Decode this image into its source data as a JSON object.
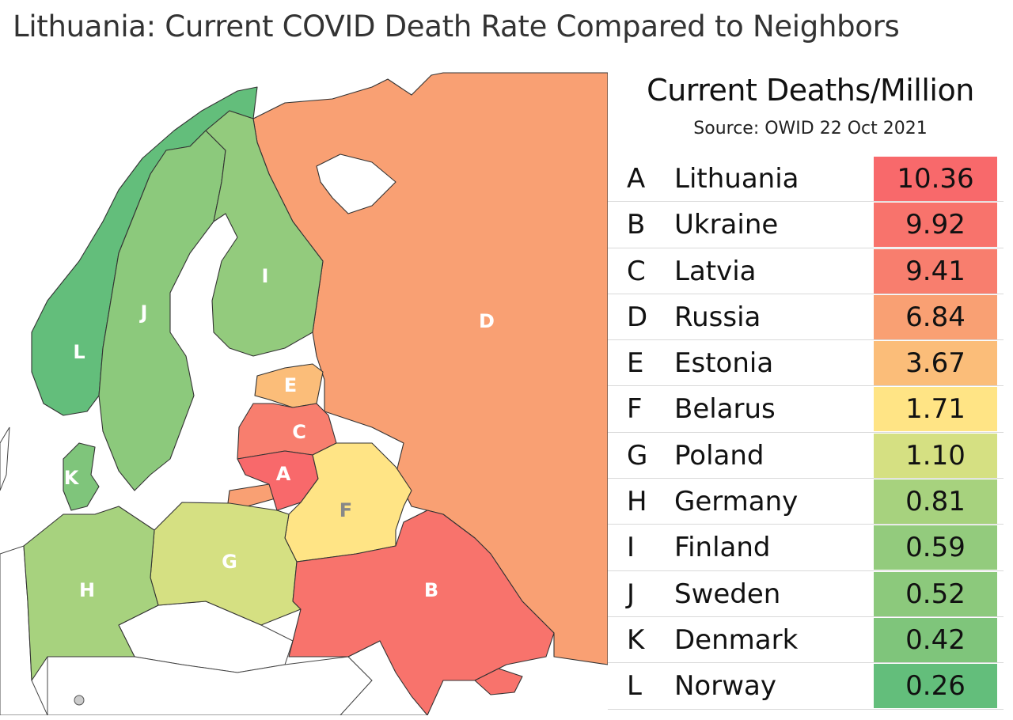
{
  "title": "Lithuania: Current COVID Death Rate Compared to Neighbors",
  "panel": {
    "heading": "Current Deaths/Million",
    "source": "Source: OWID 22 Oct 2021"
  },
  "countries": [
    {
      "letter": "A",
      "name": "Lithuania",
      "value": "10.36",
      "color": "#f8696b"
    },
    {
      "letter": "B",
      "name": "Ukraine",
      "value": "9.92",
      "color": "#f8736c"
    },
    {
      "letter": "C",
      "name": "Latvia",
      "value": "9.41",
      "color": "#f87e6e"
    },
    {
      "letter": "D",
      "name": "Russia",
      "value": "6.84",
      "color": "#f9a073"
    },
    {
      "letter": "E",
      "name": "Estonia",
      "value": "3.67",
      "color": "#fbbd79"
    },
    {
      "letter": "F",
      "name": "Belarus",
      "value": "1.71",
      "color": "#ffe485"
    },
    {
      "letter": "G",
      "name": "Poland",
      "value": "1.10",
      "color": "#d5e082"
    },
    {
      "letter": "H",
      "name": "Germany",
      "value": "0.81",
      "color": "#a7d27e"
    },
    {
      "letter": "I",
      "name": "Finland",
      "value": "0.59",
      "color": "#93cb7d"
    },
    {
      "letter": "J",
      "name": "Sweden",
      "value": "0.52",
      "color": "#8cc97c"
    },
    {
      "letter": "K",
      "name": "Denmark",
      "value": "0.42",
      "color": "#7fc57b"
    },
    {
      "letter": "L",
      "name": "Norway",
      "value": "0.26",
      "color": "#63be7b"
    }
  ]
}
